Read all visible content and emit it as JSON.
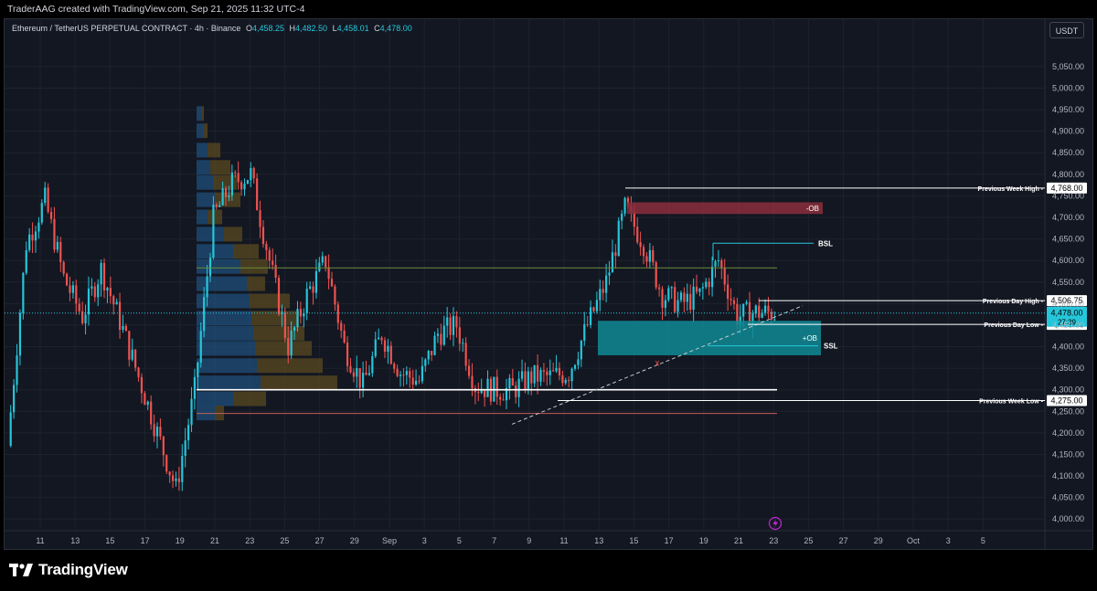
{
  "header": {
    "attribution": "TraderAAG created with TradingView.com, Sep 21, 2025 11:32 UTC-4"
  },
  "symbol": {
    "name": "Ethereum / TetherUS PERPETUAL CONTRACT · 4h · Binance",
    "open_label": "O",
    "open": "4,458.25",
    "high_label": "H",
    "high": "4,482.50",
    "low_label": "L",
    "low": "4,458.01",
    "close_label": "C",
    "close": "4,478.00"
  },
  "currency_button": "USDT",
  "logo_text": "TradingView",
  "colors": {
    "background": "#131722",
    "up": "#26c6da",
    "down": "#ef5350",
    "grid": "#1e222d",
    "bearish_ob": "#8b2e3c",
    "bullish_ob": "#0f8a94",
    "vp_up": "#1f4f7a",
    "vp_down": "#5a4a20"
  },
  "chart_data": {
    "type": "candlestick",
    "timeframe": "4h",
    "ylim": [
      3975,
      5160
    ],
    "y_ticks": [
      "4,000.00",
      "4,050.00",
      "4,100.00",
      "4,150.00",
      "4,200.00",
      "4,250.00",
      "4,300.00",
      "4,350.00",
      "4,400.00",
      "4,450.00",
      "4,500.00",
      "4,550.00",
      "4,600.00",
      "4,650.00",
      "4,700.00",
      "4,750.00",
      "4,800.00",
      "4,850.00",
      "4,900.00",
      "4,950.00",
      "5,000.00",
      "5,050.00"
    ],
    "x_ticks": [
      "11",
      "13",
      "15",
      "17",
      "19",
      "21",
      "23",
      "25",
      "27",
      "29",
      "Sep",
      "3",
      "5",
      "7",
      "9",
      "11",
      "13",
      "15",
      "17",
      "19",
      "21",
      "23",
      "25",
      "27",
      "29",
      "Oct",
      "3",
      "5"
    ],
    "price_path": [
      [
        "11",
        4170
      ],
      [
        "12",
        4640
      ],
      [
        "13",
        4740
      ],
      [
        "14",
        4560
      ],
      [
        "15",
        4470
      ],
      [
        "16",
        4580
      ],
      [
        "17",
        4460
      ],
      [
        "18",
        4330
      ],
      [
        "19",
        4200
      ],
      [
        "20",
        4070
      ],
      [
        "21",
        4300
      ],
      [
        "22",
        4700
      ],
      [
        "23",
        4780
      ],
      [
        "24",
        4800
      ],
      [
        "25",
        4600
      ],
      [
        "26",
        4400
      ],
      [
        "27",
        4520
      ],
      [
        "28",
        4600
      ],
      [
        "29",
        4400
      ],
      [
        "30",
        4310
      ],
      [
        "31",
        4430
      ],
      [
        "Sep 1",
        4340
      ],
      [
        "2",
        4320
      ],
      [
        "3",
        4430
      ],
      [
        "4",
        4450
      ],
      [
        "5",
        4310
      ],
      [
        "6",
        4300
      ],
      [
        "7",
        4300
      ],
      [
        "8",
        4330
      ],
      [
        "9",
        4330
      ],
      [
        "10",
        4340
      ],
      [
        "11",
        4450
      ],
      [
        "12",
        4550
      ],
      [
        "13",
        4720
      ],
      [
        "14",
        4640
      ],
      [
        "15",
        4520
      ],
      [
        "16",
        4500
      ],
      [
        "17",
        4520
      ],
      [
        "18",
        4600
      ],
      [
        "19",
        4470
      ],
      [
        "20",
        4480
      ],
      [
        "21",
        4478
      ]
    ],
    "levels": [
      {
        "name": "Previous Week High",
        "price_label": "4,768.00"
      },
      {
        "name": "Previous Day High",
        "price_label": "4,506.75"
      },
      {
        "name": "Previous Day Low",
        "price_label": "4,451.62"
      },
      {
        "name": "Previous Week Low",
        "price_label": "4,275.00"
      }
    ],
    "current_price": {
      "label": "4,478.00",
      "countdown": "27:39"
    },
    "zones": [
      {
        "label": "-OB",
        "top": 4735,
        "bottom": 4708
      },
      {
        "label": "+OB",
        "top": 4460,
        "bottom": 4380
      }
    ],
    "annotations": [
      "BSL",
      "SSL",
      "x"
    ],
    "horizontal_lines": [
      4583,
      4300,
      4245
    ]
  }
}
